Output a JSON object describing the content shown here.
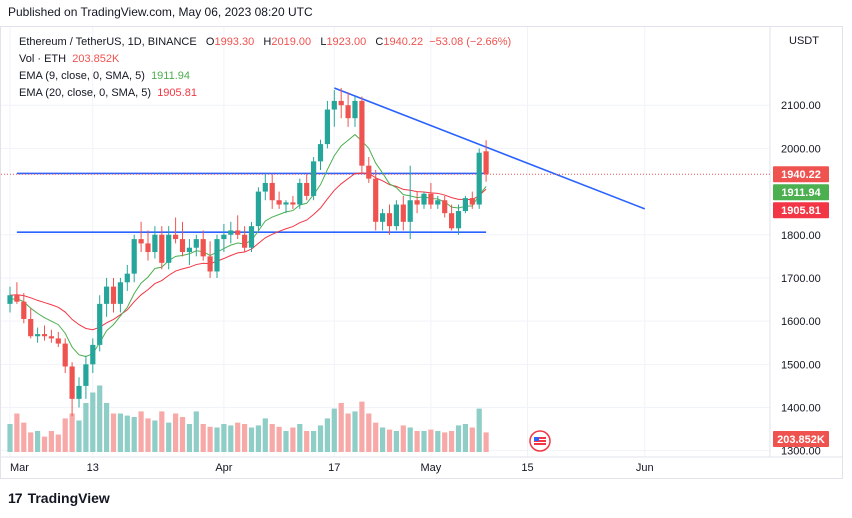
{
  "published": "Published on TradingView.com, May 06, 2023 08:20 UTC",
  "legend": {
    "symbol": "Ethereum / TetherUS, 1D, BINANCE",
    "o_label": "O",
    "o": "1993.30",
    "h_label": "H",
    "h": "2019.00",
    "l_label": "L",
    "l": "1923.00",
    "c_label": "C",
    "c": "1940.22",
    "change": "−53.08 (−2.66%)",
    "vol_label": "Vol · ETH",
    "vol": "203.852K",
    "ema9_label": "EMA (9, close, 0, SMA, 5)",
    "ema9": "1911.94",
    "ema20_label": "EMA (20, close, 0, SMA, 5)",
    "ema20": "1905.81"
  },
  "footer": {
    "logo": "TradingView"
  },
  "colors": {
    "up": "#26a69a",
    "down": "#ef5350",
    "ema9": "#4caf50",
    "ema20": "#f23645",
    "trend": "#2962ff",
    "vol_up": "#8fcdc7",
    "vol_down": "#f7a9a7"
  },
  "chart_data": {
    "type": "candlestick",
    "currency": "USDT",
    "y_ticks": [
      "2100.00",
      "2000.00",
      "1800.00",
      "1700.00",
      "1600.00",
      "1500.00",
      "1400.00",
      "1300.00"
    ],
    "y_tick_values": [
      2100,
      2000,
      1800,
      1700,
      1600,
      1500,
      1400,
      1300
    ],
    "ylim": [
      1290,
      2170
    ],
    "x_ticks": [
      "Mar",
      "13",
      "Apr",
      "17",
      "May",
      "15",
      "Jun"
    ],
    "x_tick_days": [
      0,
      12,
      31,
      47,
      61,
      75,
      92
    ],
    "price_labels": {
      "last": {
        "text": "1940.22",
        "value": 1940.22
      },
      "ema9": {
        "text": "1911.94",
        "value": 1911.94
      },
      "ema20": {
        "text": "1905.81",
        "value": 1905.81
      },
      "volume": {
        "text": "203.852K"
      }
    },
    "candles": [
      [
        1640,
        1680,
        1620,
        1660
      ],
      [
        1660,
        1690,
        1640,
        1645
      ],
      [
        1645,
        1665,
        1595,
        1605
      ],
      [
        1605,
        1630,
        1560,
        1565
      ],
      [
        1565,
        1585,
        1550,
        1570
      ],
      [
        1570,
        1590,
        1555,
        1565
      ],
      [
        1565,
        1580,
        1550,
        1560
      ],
      [
        1560,
        1575,
        1540,
        1548
      ],
      [
        1548,
        1560,
        1480,
        1495
      ],
      [
        1495,
        1505,
        1380,
        1420
      ],
      [
        1420,
        1470,
        1400,
        1450
      ],
      [
        1450,
        1520,
        1420,
        1500
      ],
      [
        1500,
        1560,
        1480,
        1545
      ],
      [
        1545,
        1660,
        1530,
        1640
      ],
      [
        1640,
        1700,
        1610,
        1680
      ],
      [
        1680,
        1700,
        1620,
        1640
      ],
      [
        1640,
        1700,
        1620,
        1690
      ],
      [
        1690,
        1730,
        1670,
        1710
      ],
      [
        1710,
        1800,
        1690,
        1790
      ],
      [
        1790,
        1830,
        1760,
        1780
      ],
      [
        1780,
        1810,
        1740,
        1760
      ],
      [
        1760,
        1820,
        1745,
        1800
      ],
      [
        1800,
        1820,
        1720,
        1735
      ],
      [
        1735,
        1820,
        1720,
        1800
      ],
      [
        1800,
        1840,
        1780,
        1790
      ],
      [
        1790,
        1830,
        1750,
        1760
      ],
      [
        1760,
        1790,
        1730,
        1770
      ],
      [
        1770,
        1800,
        1750,
        1790
      ],
      [
        1790,
        1810,
        1740,
        1750
      ],
      [
        1750,
        1785,
        1700,
        1715
      ],
      [
        1715,
        1800,
        1700,
        1790
      ],
      [
        1790,
        1825,
        1760,
        1800
      ],
      [
        1800,
        1830,
        1780,
        1810
      ],
      [
        1810,
        1845,
        1790,
        1800
      ],
      [
        1800,
        1820,
        1760,
        1770
      ],
      [
        1770,
        1830,
        1760,
        1820
      ],
      [
        1820,
        1910,
        1810,
        1900
      ],
      [
        1900,
        1940,
        1880,
        1920
      ],
      [
        1920,
        1940,
        1860,
        1880
      ],
      [
        1880,
        1900,
        1860,
        1870
      ],
      [
        1870,
        1880,
        1850,
        1875
      ],
      [
        1875,
        1890,
        1860,
        1870
      ],
      [
        1870,
        1930,
        1860,
        1920
      ],
      [
        1920,
        1940,
        1880,
        1890
      ],
      [
        1890,
        1980,
        1880,
        1970
      ],
      [
        1970,
        2020,
        1950,
        2010
      ],
      [
        2010,
        2110,
        2000,
        2090
      ],
      [
        2090,
        2135,
        2050,
        2110
      ],
      [
        2110,
        2140,
        2070,
        2100
      ],
      [
        2100,
        2130,
        2050,
        2070
      ],
      [
        2070,
        2120,
        2050,
        2110
      ],
      [
        2110,
        2120,
        1940,
        1960
      ],
      [
        1960,
        1980,
        1920,
        1930
      ],
      [
        1930,
        1950,
        1810,
        1830
      ],
      [
        1830,
        1860,
        1810,
        1850
      ],
      [
        1850,
        1870,
        1800,
        1820
      ],
      [
        1820,
        1880,
        1810,
        1870
      ],
      [
        1870,
        1890,
        1810,
        1830
      ],
      [
        1830,
        1960,
        1790,
        1880
      ],
      [
        1880,
        1900,
        1850,
        1870
      ],
      [
        1870,
        1900,
        1860,
        1895
      ],
      [
        1895,
        1920,
        1860,
        1870
      ],
      [
        1870,
        1890,
        1860,
        1880
      ],
      [
        1880,
        1890,
        1840,
        1850
      ],
      [
        1850,
        1870,
        1810,
        1815
      ],
      [
        1815,
        1870,
        1800,
        1855
      ],
      [
        1855,
        1890,
        1850,
        1885
      ],
      [
        1885,
        1900,
        1860,
        1870
      ],
      [
        1870,
        2000,
        1860,
        1990
      ],
      [
        1993.3,
        2019,
        1923,
        1940.22
      ]
    ],
    "volumes": [
      0.4,
      0.55,
      0.42,
      0.28,
      0.3,
      0.22,
      0.3,
      0.25,
      0.48,
      0.55,
      0.45,
      0.7,
      0.85,
      0.95,
      0.7,
      0.55,
      0.55,
      0.52,
      0.5,
      0.58,
      0.48,
      0.45,
      0.58,
      0.42,
      0.55,
      0.5,
      0.4,
      0.58,
      0.4,
      0.36,
      0.35,
      0.4,
      0.38,
      0.42,
      0.4,
      0.35,
      0.38,
      0.48,
      0.4,
      0.36,
      0.3,
      0.35,
      0.4,
      0.3,
      0.3,
      0.38,
      0.48,
      0.62,
      0.7,
      0.55,
      0.58,
      0.72,
      0.55,
      0.42,
      0.35,
      0.32,
      0.3,
      0.38,
      0.35,
      0.3,
      0.3,
      0.32,
      0.3,
      0.28,
      0.3,
      0.38,
      0.4,
      0.35,
      0.62,
      0.28
    ],
    "ema9": [
      1650,
      1652,
      1645,
      1630,
      1618,
      1608,
      1600,
      1592,
      1572,
      1540,
      1522,
      1518,
      1525,
      1550,
      1578,
      1592,
      1612,
      1632,
      1664,
      1688,
      1702,
      1722,
      1725,
      1740,
      1750,
      1752,
      1756,
      1763,
      1761,
      1752,
      1760,
      1768,
      1776,
      1781,
      1779,
      1787,
      1809,
      1832,
      1841,
      1847,
      1853,
      1856,
      1869,
      1873,
      1893,
      1916,
      1951,
      1983,
      2006,
      2019,
      2032,
      2017,
      2000,
      1966,
      1943,
      1918,
      1909,
      1893,
      1890,
      1886,
      1888,
      1884,
      1883,
      1876,
      1864,
      1862,
      1866,
      1867,
      1892,
      1911.94
    ],
    "ema20": [
      1660,
      1661,
      1659,
      1654,
      1648,
      1643,
      1638,
      1632,
      1621,
      1604,
      1592,
      1583,
      1580,
      1586,
      1596,
      1604,
      1615,
      1626,
      1645,
      1661,
      1673,
      1687,
      1694,
      1706,
      1716,
      1721,
      1725,
      1731,
      1734,
      1733,
      1739,
      1745,
      1752,
      1758,
      1760,
      1767,
      1780,
      1793,
      1801,
      1808,
      1814,
      1819,
      1828,
      1834,
      1847,
      1862,
      1883,
      1903,
      1918,
      1930,
      1942,
      1943,
      1942,
      1932,
      1925,
      1916,
      1912,
      1905,
      1903,
      1900,
      1899,
      1897,
      1896,
      1892,
      1886,
      1882,
      1882,
      1881,
      1891,
      1905.81
    ],
    "trendlines": [
      {
        "from": [
          1,
          1942
        ],
        "to": [
          69,
          1942
        ]
      },
      {
        "from": [
          1,
          1806
        ],
        "to": [
          69,
          1806
        ]
      },
      {
        "from": [
          47,
          2140
        ],
        "to": [
          92,
          1860
        ]
      }
    ]
  }
}
